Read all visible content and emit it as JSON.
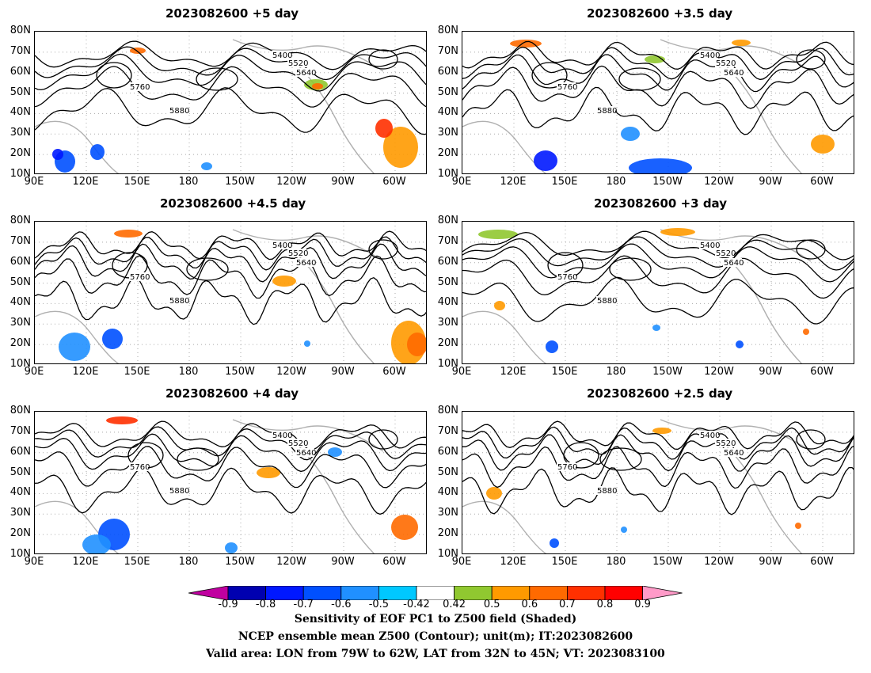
{
  "panels": [
    {
      "title": "2023082600 +5 day"
    },
    {
      "title": "2023082600 +3.5 day"
    },
    {
      "title": "2023082600 +4.5 day"
    },
    {
      "title": "2023082600 +3 day"
    },
    {
      "title": "2023082600 +4 day"
    },
    {
      "title": "2023082600 +2.5 day"
    }
  ],
  "lat_ticks": [
    "80N",
    "70N",
    "60N",
    "50N",
    "40N",
    "30N",
    "20N",
    "10N"
  ],
  "lon_ticks": [
    "90E",
    "120E",
    "150E",
    "180",
    "150W",
    "120W",
    "90W",
    "60W"
  ],
  "contour_levels": [
    "5400",
    "5520",
    "5640",
    "5760",
    "5880"
  ],
  "colorbar": {
    "labels": [
      "-0.9",
      "-0.8",
      "-0.7",
      "-0.6",
      "-0.5",
      "-0.42",
      "0.42",
      "0.5",
      "0.6",
      "0.7",
      "0.8",
      "0.9"
    ],
    "colors": [
      "#c000a0",
      "#0000b0",
      "#0018ff",
      "#0050ff",
      "#2090ff",
      "#00c8ff",
      "#ffffff",
      "#90c830",
      "#ff9a00",
      "#ff6a00",
      "#ff3000",
      "#ff0000",
      "#ff9ac8"
    ]
  },
  "caption": {
    "line1": "Sensitivity of EOF PC1 to Z500 field (Shaded)",
    "line2": "NCEP ensemble mean Z500 (Contour); unit(m); IT:2023082600",
    "line3": "Valid area: LON from 79W to 62W, LAT from 32N to 45N; VT: 2023083100"
  }
}
